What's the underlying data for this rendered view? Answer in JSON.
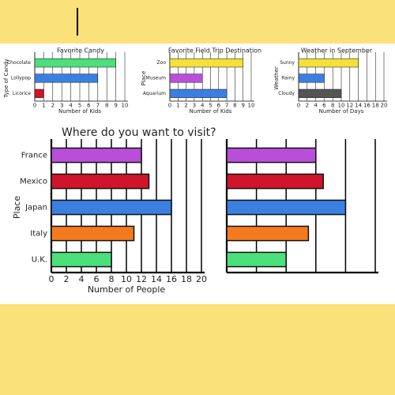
{
  "chart_data": [
    {
      "type": "bar",
      "title": "Favorite Candy",
      "xlabel": "Number of Kids",
      "ylabel": "Type of Candy",
      "categories": [
        "Chocolate",
        "Lollypop",
        "Licorice"
      ],
      "values": [
        9,
        7,
        1
      ],
      "colors": [
        "#4be07a",
        "#3b7fe0",
        "#d0142c"
      ],
      "xlim": [
        0,
        10
      ],
      "xticks": [
        0,
        1,
        2,
        3,
        4,
        5,
        6,
        7,
        8,
        9,
        10
      ],
      "grid": true
    },
    {
      "type": "bar",
      "title": "Favorite Field Trip Destination",
      "xlabel": "Number of Kids",
      "ylabel": "Place",
      "categories": [
        "Zoo",
        "Museum",
        "Aquarium"
      ],
      "values": [
        9,
        4,
        7
      ],
      "colors": [
        "#f5e03a",
        "#b94fd8",
        "#3b7fe0"
      ],
      "xlim": [
        0,
        10
      ],
      "xticks": [
        0,
        1,
        2,
        3,
        4,
        5,
        6,
        7,
        8,
        9,
        10
      ],
      "grid": true
    },
    {
      "type": "bar",
      "title": "Weather in September",
      "xlabel": "Number of Days",
      "ylabel": "Weather",
      "categories": [
        "Sunny",
        "Rainy",
        "Cloudy"
      ],
      "values": [
        14,
        6,
        10
      ],
      "colors": [
        "#f5e03a",
        "#3b7fe0",
        "#555555"
      ],
      "xlim": [
        0,
        20
      ],
      "xticks": [
        0,
        2,
        4,
        6,
        8,
        10,
        12,
        14,
        16,
        18,
        20
      ],
      "grid": true
    },
    {
      "type": "bar",
      "title": "Where do you want to visit?",
      "xlabel": "Number of People",
      "ylabel": "Place",
      "categories": [
        "France",
        "Mexico",
        "Japan",
        "Italy",
        "U.K."
      ],
      "values": [
        12,
        13,
        16,
        11,
        8
      ],
      "colors": [
        "#b94fd8",
        "#d0142c",
        "#3b7fe0",
        "#f57a1e",
        "#4be07a"
      ],
      "xlim": [
        0,
        20
      ],
      "xticks": [
        0,
        2,
        4,
        6,
        8,
        10,
        12,
        14,
        16,
        18,
        20
      ],
      "grid": true
    },
    {
      "type": "bar",
      "categories": [
        null,
        null,
        null,
        null,
        null
      ],
      "values": [
        12,
        13,
        16,
        11,
        8
      ],
      "colors": [
        "#b94fd8",
        "#d0142c",
        "#3b7fe0",
        "#f57a1e",
        "#4be07a"
      ],
      "xlim": [
        0,
        20
      ],
      "xticks": [
        4,
        8,
        12,
        16,
        20
      ],
      "tick_labels": false,
      "grid": true
    }
  ]
}
